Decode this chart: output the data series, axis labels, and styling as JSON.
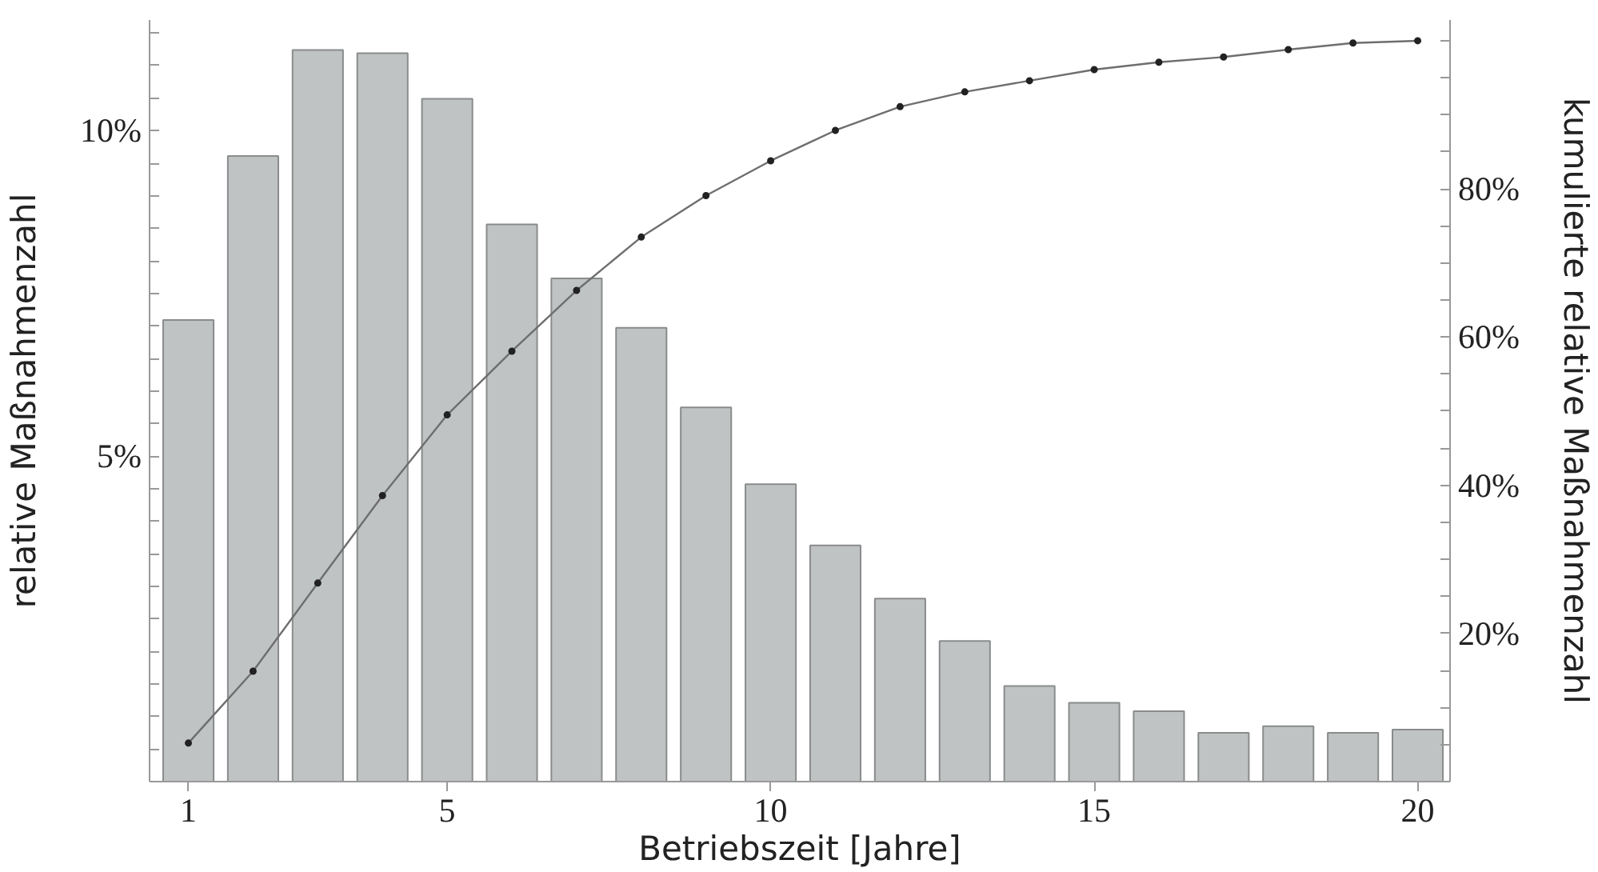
{
  "chart_data": {
    "type": "bar",
    "xlabel": "Betriebszeit [Jahre]",
    "ylabel": "relative Maßnahmenzahl",
    "y2label": "kumulierte relative Maßnahmenzahl",
    "x": [
      1,
      2,
      3,
      4,
      5,
      6,
      7,
      8,
      9,
      10,
      11,
      12,
      13,
      14,
      15,
      16,
      17,
      18,
      19,
      20
    ],
    "xlim": [
      0.4,
      20.5
    ],
    "xticks": [
      1,
      5,
      10,
      15,
      20
    ],
    "ylim": [
      0,
      11.7
    ],
    "yticks": [
      {
        "value": 0.5,
        "label": null
      },
      {
        "value": 1,
        "label": null
      },
      {
        "value": 1.5,
        "label": null
      },
      {
        "value": 2,
        "label": null
      },
      {
        "value": 2.5,
        "label": null
      },
      {
        "value": 3,
        "label": null
      },
      {
        "value": 3.5,
        "label": null
      },
      {
        "value": 4,
        "label": null
      },
      {
        "value": 4.5,
        "label": null
      },
      {
        "value": 5,
        "label": "5%"
      },
      {
        "value": 5.5,
        "label": null
      },
      {
        "value": 6,
        "label": null
      },
      {
        "value": 6.5,
        "label": null
      },
      {
        "value": 7,
        "label": null
      },
      {
        "value": 7.5,
        "label": null
      },
      {
        "value": 8,
        "label": null
      },
      {
        "value": 8.5,
        "label": null
      },
      {
        "value": 9,
        "label": null
      },
      {
        "value": 9.5,
        "label": null
      },
      {
        "value": 10,
        "label": "10%"
      },
      {
        "value": 10.5,
        "label": null
      },
      {
        "value": 11,
        "label": null
      },
      {
        "value": 11.5,
        "label": null
      }
    ],
    "y2lim": [
      0,
      102.8
    ],
    "y2ticks": [
      {
        "value": 5,
        "label": null
      },
      {
        "value": 10,
        "label": null
      },
      {
        "value": 15,
        "label": null
      },
      {
        "value": 20,
        "label": "20%"
      },
      {
        "value": 25,
        "label": null
      },
      {
        "value": 30,
        "label": null
      },
      {
        "value": 35,
        "label": null
      },
      {
        "value": 40,
        "label": "40%"
      },
      {
        "value": 45,
        "label": null
      },
      {
        "value": 50,
        "label": null
      },
      {
        "value": 55,
        "label": null
      },
      {
        "value": 60,
        "label": "60%"
      },
      {
        "value": 65,
        "label": null
      },
      {
        "value": 70,
        "label": null
      },
      {
        "value": 75,
        "label": null
      },
      {
        "value": 80,
        "label": "80%"
      },
      {
        "value": 85,
        "label": null
      },
      {
        "value": 90,
        "label": null
      },
      {
        "value": 95,
        "label": null
      },
      {
        "value": 100,
        "label": null
      }
    ],
    "grid": false,
    "series": [
      {
        "color": "#bfc3c4",
        "values": [
          7.09,
          9.61,
          11.24,
          11.19,
          10.49,
          8.56,
          7.73,
          6.97,
          5.75,
          4.57,
          3.63,
          2.81,
          2.16,
          1.47,
          1.21,
          1.08,
          0.75,
          0.85,
          0.75,
          0.8
        ]
      },
      {
        "type": "line",
        "axis": "y2",
        "color": "#6e6e6e",
        "marker": "circle",
        "line_style": "solid",
        "values": [
          5.2,
          14.9,
          26.8,
          38.6,
          49.5,
          58.1,
          66.3,
          73.5,
          79.1,
          83.8,
          87.9,
          91.1,
          93.1,
          94.6,
          96.1,
          97.1,
          97.8,
          98.8,
          99.7,
          100
        ]
      }
    ]
  }
}
